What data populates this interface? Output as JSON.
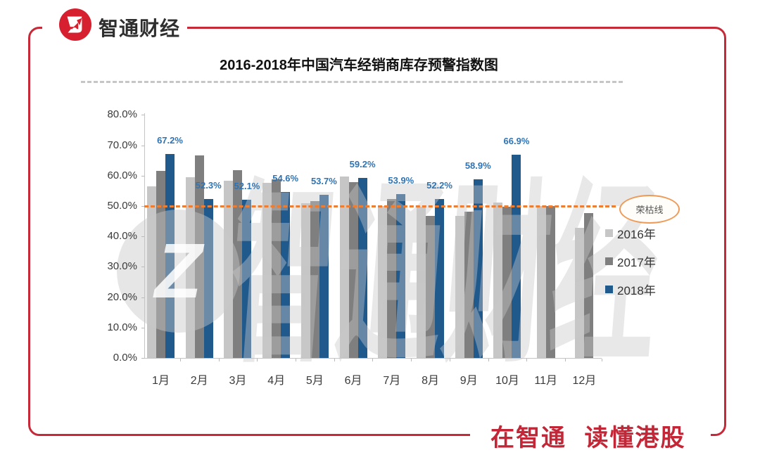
{
  "brand": {
    "logo_text": "智通财经",
    "slogan": "在智通 读懂港股"
  },
  "watermark": {
    "text": "智通财经",
    "mark_letter": "Z"
  },
  "colors": {
    "brand_red": "#C62A38",
    "slogan_red": "#C32737",
    "bar_2016": "#C6C6C6",
    "bar_2017": "#7F7F7F",
    "bar_2018": "#20598C",
    "data_label_blue": "#2E74B5",
    "reference_orange": "#ED7D31",
    "axis_gray": "#C4C4C4"
  },
  "chart_data": {
    "type": "bar",
    "title": "2016-2018年中国汽车经销商库存预警指数图",
    "categories": [
      "1月",
      "2月",
      "3月",
      "4月",
      "5月",
      "6月",
      "7月",
      "8月",
      "9月",
      "10月",
      "11月",
      "12月"
    ],
    "series": [
      {
        "name": "2016年",
        "color": "#C6C6C6",
        "values": [
          56.5,
          59.4,
          58.3,
          57.6,
          51.0,
          59.7,
          49.9,
          49.7,
          46.8,
          51.2,
          50.1,
          42.9
        ]
      },
      {
        "name": "2017年",
        "color": "#7F7F7F",
        "values": [
          61.5,
          66.6,
          61.9,
          58.8,
          51.6,
          57.8,
          52.3,
          46.7,
          48.2,
          49.8,
          49.9,
          47.7
        ]
      },
      {
        "name": "2018年",
        "color": "#20598C",
        "values": [
          67.2,
          52.3,
          52.1,
          54.6,
          53.7,
          59.2,
          53.9,
          52.2,
          58.9,
          66.9,
          null,
          null
        ]
      }
    ],
    "data_label_series": "2018年",
    "data_labels": [
      "67.2%",
      "52.3%",
      "52.1%",
      "54.6%",
      "53.7%",
      "59.2%",
      "53.9%",
      "52.2%",
      "58.9%",
      "66.9%"
    ],
    "reference_line": {
      "value": 50.0,
      "label": "荣枯线"
    },
    "ylim": [
      0,
      80
    ],
    "ytick_labels": [
      "0.0%",
      "10.0%",
      "20.0%",
      "30.0%",
      "40.0%",
      "50.0%",
      "60.0%",
      "70.0%",
      "80.0%"
    ],
    "xlabel": "",
    "ylabel": "",
    "grid": false,
    "legend_position": "right",
    "legend": [
      "2016年",
      "2017年",
      "2018年"
    ]
  }
}
